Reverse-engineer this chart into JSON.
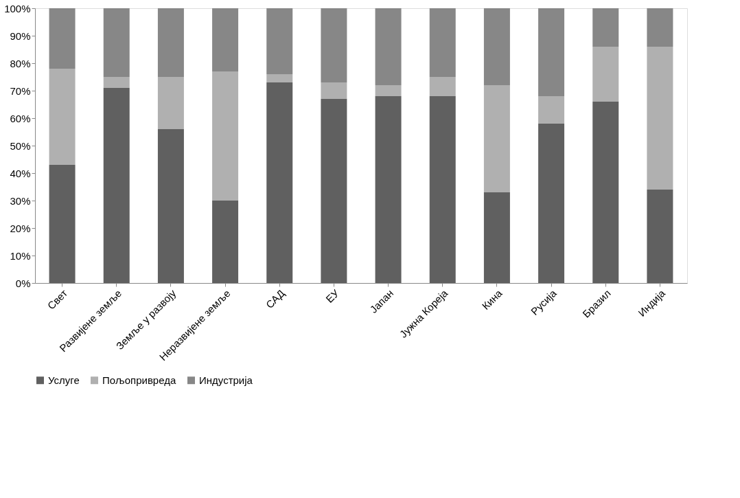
{
  "chart_data": {
    "type": "bar",
    "stacked": true,
    "categories": [
      "Свет",
      "Развијене земље",
      "Земље у развоју",
      "Неразвијене земље",
      "САД",
      "ЕУ",
      "Јапан",
      "Јужна Кореја",
      "Кина",
      "Русија",
      "Бразил",
      "Индија"
    ],
    "series": [
      {
        "name": "Услуге",
        "color": "#606060",
        "values": [
          43,
          71,
          56,
          30,
          73,
          67,
          68,
          68,
          33,
          58,
          66,
          34
        ]
      },
      {
        "name": "Пољопривреда",
        "color": "#b0b0b0",
        "values": [
          35,
          4,
          19,
          47,
          3,
          6,
          4,
          7,
          39,
          10,
          20,
          52
        ]
      },
      {
        "name": "Индустрија",
        "color": "#878787",
        "values": [
          22,
          25,
          25,
          23,
          24,
          27,
          28,
          25,
          28,
          32,
          14,
          14
        ]
      }
    ],
    "ylim": [
      0,
      100
    ],
    "yticks": [
      {
        "value": 0,
        "label": "0%"
      },
      {
        "value": 10,
        "label": "10%"
      },
      {
        "value": 20,
        "label": "20%"
      },
      {
        "value": 30,
        "label": "30%"
      },
      {
        "value": 40,
        "label": "40%"
      },
      {
        "value": 50,
        "label": "50%"
      },
      {
        "value": 60,
        "label": "60%"
      },
      {
        "value": 70,
        "label": "70%"
      },
      {
        "value": 80,
        "label": "80%"
      },
      {
        "value": 90,
        "label": "90%"
      },
      {
        "value": 100,
        "label": "100%"
      }
    ],
    "grid": false,
    "legend": "bottom"
  }
}
